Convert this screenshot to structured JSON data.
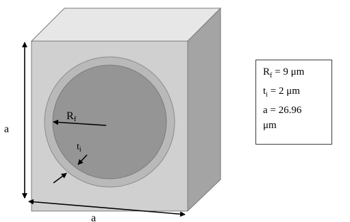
{
  "diagram": {
    "labels": {
      "radius_main": "R",
      "radius_sub": "f",
      "thickness_main": "t",
      "thickness_sub": "i",
      "height_side": "a",
      "width_side": "a"
    },
    "legend": {
      "rf_main": "R",
      "rf_sub": "f",
      "rf_value": " = 9 μm",
      "ti_main": "t",
      "ti_sub": "i",
      "ti_value": " = 2 μm",
      "a_line": "a = 26.96",
      "a_unit": "μm"
    },
    "colors": {
      "front_face": "#d0d0d0",
      "top_face": "#e7e7e7",
      "right_face": "#a4a4a4",
      "interphase_ring": "#b9b9b9",
      "fiber": "#959595",
      "edges": "#7a7a7a"
    }
  }
}
